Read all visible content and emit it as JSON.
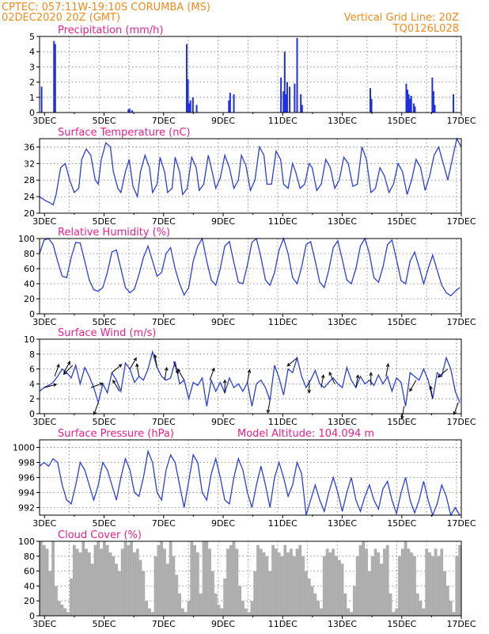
{
  "header": {
    "line1": "CPTEC:   057:11W-19:10S   CORUMBA (MS)",
    "line2_left": "02DEC2020 20Z (GMT)",
    "line2_right": "Vertical Grid Line: 20Z",
    "line3_right": "TQ0126L028"
  },
  "colors": {
    "header": "#f08a1c",
    "panel_title": "#e8218c",
    "series_line": "#2b3fd6",
    "precip_bar": "#2030e0",
    "wind_arrow": "#000000",
    "cloud_fill": "#aaaaaa"
  },
  "x_axis": {
    "start_day": 2,
    "start_hour": 20,
    "end_day": 17,
    "end_hour": 0,
    "tick_labels": [
      {
        "day": 3,
        "label": "3DEC"
      },
      {
        "day": 5,
        "label": "5DEC"
      },
      {
        "day": 7,
        "label": "7DEC"
      },
      {
        "day": 9,
        "label": "9DEC"
      },
      {
        "day": 11,
        "label": "11DEC"
      },
      {
        "day": 13,
        "label": "13DEC"
      },
      {
        "day": 15,
        "label": "15DEC"
      },
      {
        "day": 17,
        "label": "17DEC"
      }
    ]
  },
  "chart_data": [
    {
      "type": "bar",
      "title": "Precipitation (mm/h)",
      "ylim": [
        0,
        5
      ],
      "yticks": [
        0,
        1,
        2,
        3,
        4,
        5
      ],
      "grid": true,
      "x_unit": "days since 02DEC2020 20Z",
      "x": [
        0.05,
        0.55,
        0.6,
        3.55,
        3.6,
        3.7,
        5.9,
        5.95,
        6.0,
        6.05,
        6.15,
        6.3,
        7.6,
        7.65,
        7.8,
        9.7,
        9.8,
        9.85,
        9.9,
        9.95,
        10.05,
        10.25,
        10.35,
        10.5,
        10.55,
        13.3,
        13.35,
        14.75,
        14.8,
        14.85,
        14.9,
        14.95,
        15.05,
        15.1,
        15.8,
        15.85,
        15.9,
        16.65
      ],
      "values": [
        1.7,
        4.7,
        4.5,
        0.2,
        0.25,
        0.15,
        4.5,
        2.2,
        0.6,
        0.8,
        1.0,
        0.5,
        0.8,
        1.3,
        1.2,
        2.3,
        1.4,
        4.0,
        1.2,
        2.0,
        1.7,
        1.9,
        4.9,
        1.2,
        0.5,
        1.6,
        0.9,
        1.9,
        1.5,
        1.2,
        0.9,
        1.1,
        0.6,
        0.4,
        2.3,
        1.4,
        0.5,
        1.2
      ]
    },
    {
      "type": "line",
      "title": "Surface Temperature (nC)",
      "ylim": [
        20,
        38
      ],
      "yticks": [
        20,
        24,
        28,
        32,
        36
      ],
      "grid": true,
      "x_unit": "days since 02DEC2020 20Z",
      "x": [
        0.0,
        0.4,
        0.7,
        0.9,
        1.1,
        1.4,
        1.7,
        2.0,
        2.3,
        2.6,
        2.8,
        3.1,
        3.4,
        3.7,
        3.9,
        4.1,
        4.4,
        4.7,
        4.9,
        5.2,
        5.4,
        5.7,
        5.95,
        6.2,
        6.5,
        6.7,
        7.0,
        7.3,
        7.5,
        7.8,
        8.0,
        8.3,
        8.5,
        8.8,
        9.0,
        9.3,
        9.5,
        9.8,
        10.1,
        10.4,
        10.6,
        10.9,
        11.2,
        11.4,
        11.7,
        12.0,
        12.3,
        12.6,
        12.9,
        13.2,
        13.4,
        13.7,
        14.0,
        14.3,
        14.6,
        14.9,
        15.1,
        15.4,
        15.7,
        16.0,
        16.2,
        16.5,
        16.8,
        17.0,
        17.3,
        17.6,
        17.9,
        18.1,
        18.4,
        18.7,
        19.0,
        19.3,
        19.6,
        19.9,
        20.2,
        20.5,
        20.8,
        21.1,
        21.4,
        21.7,
        22.0,
        22.3,
        22.6,
        22.9,
        23.2,
        23.5,
        23.8,
        24.1,
        24.4,
        24.7,
        25.0,
        25.3,
        25.6,
        25.9,
        26.2,
        26.5,
        26.8,
        27.1,
        27.4,
        27.7,
        28.0
      ],
      "values": [
        24,
        23,
        22.5,
        22,
        24.5,
        31,
        32,
        28,
        25,
        26,
        33,
        35.5,
        34,
        28,
        27,
        33,
        37,
        36,
        30,
        26,
        25,
        30,
        33,
        26.5,
        24,
        30,
        34,
        31,
        25,
        27,
        33.5,
        30,
        25,
        26,
        33.5,
        30,
        24.5,
        26,
        33.5,
        31,
        25.5,
        27,
        34,
        31,
        26,
        28.5,
        34,
        31,
        26,
        28,
        34,
        31.5,
        25.5,
        28,
        36,
        34,
        27,
        27,
        35,
        33,
        27,
        26,
        32,
        30,
        26,
        27,
        32,
        31,
        25.5,
        27,
        33,
        31,
        26,
        28,
        33.5,
        32,
        26.5,
        27,
        36,
        33,
        25,
        26,
        31,
        29,
        25,
        27,
        32,
        30,
        24.5,
        28,
        33,
        31,
        25.5,
        29,
        34,
        36,
        32,
        28,
        33,
        38,
        36
      ]
    },
    {
      "type": "line",
      "title": "Relative Humidity (%)",
      "ylim": [
        0,
        100
      ],
      "yticks": [
        0,
        20,
        40,
        60,
        80,
        100
      ],
      "grid": true,
      "x_unit": "days since 02DEC2020 20Z",
      "x": [
        0.0,
        0.3,
        0.6,
        0.9,
        1.2,
        1.5,
        1.8,
        2.1,
        2.4,
        2.7,
        3.0,
        3.3,
        3.6,
        3.9,
        4.2,
        4.5,
        4.8,
        5.1,
        5.4,
        5.7,
        6.0,
        6.3,
        6.6,
        6.9,
        7.2,
        7.5,
        7.8,
        8.1,
        8.4,
        8.7,
        9.0,
        9.3,
        9.6,
        9.9,
        10.2,
        10.5,
        10.8,
        11.1,
        11.4,
        11.7,
        12.0,
        12.3,
        12.6,
        12.9,
        13.2,
        13.5,
        13.8,
        14.1,
        14.4,
        14.7,
        15.0,
        15.3,
        15.6,
        15.9,
        16.2,
        16.5,
        16.8,
        17.1,
        17.4,
        17.7,
        18.0,
        18.3,
        18.6,
        18.9,
        19.2,
        19.5,
        19.8,
        20.1,
        20.4,
        20.7,
        21.0,
        21.3,
        21.6,
        21.9,
        22.2,
        22.5,
        22.8,
        23.1,
        23.4,
        23.7,
        24.0,
        24.3,
        24.6,
        24.9,
        25.2,
        25.5,
        25.8,
        26.1,
        26.4,
        26.7,
        27.0,
        27.3,
        27.6,
        27.9
      ],
      "values": [
        80,
        98,
        100,
        92,
        70,
        50,
        48,
        75,
        95,
        94,
        70,
        45,
        32,
        30,
        35,
        55,
        82,
        85,
        60,
        35,
        28,
        33,
        52,
        75,
        90,
        70,
        50,
        55,
        80,
        88,
        60,
        40,
        25,
        35,
        70,
        90,
        100,
        70,
        45,
        38,
        60,
        90,
        96,
        68,
        42,
        40,
        65,
        95,
        100,
        75,
        45,
        38,
        55,
        85,
        100,
        80,
        48,
        40,
        62,
        92,
        96,
        70,
        42,
        35,
        58,
        88,
        97,
        72,
        45,
        40,
        60,
        90,
        100,
        80,
        48,
        42,
        62,
        92,
        98,
        72,
        44,
        40,
        70,
        82,
        62,
        40,
        60,
        78,
        58,
        38,
        28,
        24,
        30,
        35
      ]
    },
    {
      "type": "line",
      "title": "Surface Wind (m/s)",
      "ylim": [
        0,
        10
      ],
      "yticks": [
        0,
        2,
        4,
        6,
        8,
        10
      ],
      "grid": true,
      "x_unit": "days since 02DEC2020 20Z",
      "x": [
        0.0,
        0.3,
        0.6,
        0.9,
        1.2,
        1.5,
        1.8,
        2.1,
        2.4,
        2.7,
        3.0,
        3.3,
        3.6,
        3.9,
        4.2,
        4.5,
        4.8,
        5.1,
        5.4,
        5.7,
        6.0,
        6.3,
        6.6,
        6.9,
        7.2,
        7.5,
        7.8,
        8.1,
        8.4,
        8.7,
        9.0,
        9.3,
        9.6,
        9.9,
        10.2,
        10.5,
        10.8,
        11.1,
        11.4,
        11.7,
        12.0,
        12.3,
        12.6,
        12.9,
        13.2,
        13.5,
        13.8,
        14.1,
        14.4,
        14.7,
        15.0,
        15.3,
        15.6,
        15.9,
        16.2,
        16.5,
        16.8,
        17.1,
        17.4,
        17.7,
        18.0,
        18.3,
        18.6,
        18.9,
        19.2,
        19.5,
        19.8,
        20.1,
        20.4,
        20.7,
        21.0,
        21.3,
        21.6,
        21.9,
        22.2,
        22.5,
        22.8,
        23.1,
        23.4,
        23.7,
        24.0,
        24.3,
        24.6,
        24.9,
        25.2,
        25.5,
        25.8,
        26.1,
        26.4,
        26.7,
        27.0,
        27.3,
        27.6,
        27.9
      ],
      "values": [
        3.0,
        3.5,
        3.8,
        4.2,
        5.0,
        6.0,
        5.5,
        4.8,
        6.5,
        4.0,
        6.2,
        5.0,
        3.5,
        1.5,
        4.0,
        2.8,
        5.5,
        4.5,
        3.0,
        6.8,
        6.0,
        4.2,
        5.0,
        4.5,
        6.0,
        8.3,
        6.2,
        5.0,
        4.5,
        4.8,
        7.0,
        4.0,
        4.5,
        2.0,
        4.2,
        3.8,
        4.8,
        1.0,
        4.5,
        3.0,
        4.2,
        2.8,
        4.8,
        3.5,
        4.0,
        3.0,
        4.2,
        1.0,
        4.0,
        4.5,
        3.5,
        1.8,
        6.5,
        4.8,
        2.5,
        6.0,
        5.5,
        7.5,
        5.0,
        3.5,
        4.5,
        5.8,
        4.0,
        3.5,
        4.2,
        4.8,
        4.0,
        3.5,
        6.2,
        4.5,
        3.5,
        5.0,
        4.0,
        4.5,
        3.8,
        5.2,
        4.0,
        5.0,
        3.0,
        4.8,
        4.2,
        1.0,
        5.5,
        5.0,
        4.5,
        6.0,
        4.5,
        2.0,
        5.5,
        5.0,
        7.5,
        6.0,
        3.0,
        1.5
      ],
      "arrows": [
        {
          "x": 0.3,
          "dir_deg": 15
        },
        {
          "x": 1.0,
          "dir_deg": 70
        },
        {
          "x": 1.6,
          "dir_deg": 60
        },
        {
          "x": 2.2,
          "dir_deg": 225
        },
        {
          "x": 3.4,
          "dir_deg": 20
        },
        {
          "x": 3.9,
          "dir_deg": 250
        },
        {
          "x": 4.8,
          "dir_deg": 40
        },
        {
          "x": 5.3,
          "dir_deg": 120
        },
        {
          "x": 6.0,
          "dir_deg": 60
        },
        {
          "x": 6.6,
          "dir_deg": 100
        },
        {
          "x": 7.8,
          "dir_deg": 100
        },
        {
          "x": 8.3,
          "dir_deg": 80
        },
        {
          "x": 8.9,
          "dir_deg": 290
        },
        {
          "x": 9.6,
          "dir_deg": 120
        },
        {
          "x": 11.3,
          "dir_deg": 70
        },
        {
          "x": 12.3,
          "dir_deg": 90
        },
        {
          "x": 13.8,
          "dir_deg": 80
        },
        {
          "x": 15.3,
          "dir_deg": 260
        },
        {
          "x": 17.1,
          "dir_deg": 220
        },
        {
          "x": 17.9,
          "dir_deg": 270
        },
        {
          "x": 18.7,
          "dir_deg": 80
        },
        {
          "x": 19.6,
          "dir_deg": 115
        },
        {
          "x": 21.0,
          "dir_deg": 80
        },
        {
          "x": 22.0,
          "dir_deg": 90
        },
        {
          "x": 23.0,
          "dir_deg": 80
        },
        {
          "x": 24.2,
          "dir_deg": 260
        },
        {
          "x": 25.0,
          "dir_deg": 240
        },
        {
          "x": 26.1,
          "dir_deg": 100
        },
        {
          "x": 27.1,
          "dir_deg": 220
        },
        {
          "x": 27.8,
          "dir_deg": 250
        }
      ]
    },
    {
      "type": "line",
      "title": "Surface Pressure (hPa)",
      "subtitle": "Model Altitude: 104.094  m",
      "ylim": [
        991,
        1001
      ],
      "yticks": [
        992,
        994,
        996,
        998,
        1000
      ],
      "grid": true,
      "x_unit": "days since 02DEC2020 20Z",
      "x": [
        0.0,
        0.3,
        0.6,
        0.9,
        1.2,
        1.5,
        1.8,
        2.1,
        2.4,
        2.7,
        3.0,
        3.3,
        3.6,
        3.9,
        4.2,
        4.5,
        4.8,
        5.1,
        5.4,
        5.7,
        6.0,
        6.3,
        6.6,
        6.9,
        7.2,
        7.5,
        7.8,
        8.1,
        8.4,
        8.7,
        9.0,
        9.3,
        9.6,
        9.9,
        10.2,
        10.5,
        10.8,
        11.1,
        11.4,
        11.7,
        12.0,
        12.3,
        12.6,
        12.9,
        13.2,
        13.5,
        13.8,
        14.1,
        14.4,
        14.7,
        15.0,
        15.3,
        15.6,
        15.9,
        16.2,
        16.5,
        16.8,
        17.1,
        17.4,
        17.7,
        18.0,
        18.3,
        18.6,
        18.9,
        19.2,
        19.5,
        19.8,
        20.1,
        20.4,
        20.7,
        21.0,
        21.3,
        21.6,
        21.9,
        22.2,
        22.5,
        22.8,
        23.1,
        23.4,
        23.7,
        24.0,
        24.3,
        24.6,
        24.9,
        25.2,
        25.5,
        25.8,
        26.1,
        26.4,
        26.7,
        27.0,
        27.3,
        27.6,
        27.9
      ],
      "values": [
        997.5,
        998,
        997.5,
        998.5,
        998,
        995,
        993,
        992.5,
        995,
        998,
        997,
        995,
        993,
        995,
        998,
        997,
        995,
        993,
        996,
        998.5,
        997,
        994,
        993.5,
        996,
        999.5,
        998,
        994,
        993,
        997,
        999,
        998,
        995,
        992,
        995.5,
        999,
        998,
        994,
        993,
        996.5,
        998.5,
        996,
        993,
        992.5,
        996,
        998.5,
        997,
        994,
        992,
        995,
        997.5,
        995,
        992,
        996,
        998,
        996,
        993.5,
        995,
        998,
        996.5,
        991,
        993,
        995,
        993,
        991.5,
        994,
        996,
        994,
        991.5,
        994,
        996,
        993,
        991.5,
        993.5,
        995,
        993,
        991.8,
        994.5,
        995.5,
        993,
        991.2,
        994,
        996,
        993,
        991.3,
        993,
        995.5,
        993,
        991,
        992.5,
        995,
        993.5,
        991,
        992,
        991
      ]
    },
    {
      "type": "area",
      "title": "Cloud Cover (%)",
      "ylim": [
        0,
        100
      ],
      "yticks": [
        0,
        20,
        40,
        60,
        80,
        100
      ],
      "grid": true,
      "x_unit": "days since 02DEC2020 20Z",
      "x": [
        0.0,
        0.2,
        0.4,
        0.6,
        0.8,
        1.0,
        1.2,
        1.4,
        1.6,
        1.8,
        2.0,
        2.2,
        2.4,
        2.6,
        2.8,
        3.0,
        3.2,
        3.4,
        3.6,
        3.8,
        4.0,
        4.2,
        4.4,
        4.6,
        4.8,
        5.0,
        5.2,
        5.4,
        5.6,
        5.8,
        6.0,
        6.2,
        6.4,
        6.6,
        6.8,
        7.0,
        7.2,
        7.4,
        7.6,
        7.8,
        8.0,
        8.2,
        8.4,
        8.6,
        8.8,
        9.0,
        9.2,
        9.4,
        9.6,
        9.8,
        10.0,
        10.2,
        10.4,
        10.6,
        10.8,
        11.0,
        11.2,
        11.4,
        11.6,
        11.8,
        12.0,
        12.2,
        12.4,
        12.6,
        12.8,
        13.0,
        13.2,
        13.4,
        13.6,
        13.8,
        14.0,
        14.2,
        14.4,
        14.6,
        14.8,
        15.0,
        15.2,
        15.4,
        15.6,
        15.8,
        16.0,
        16.2,
        16.4,
        16.6,
        16.8,
        17.0,
        17.2,
        17.4,
        17.6,
        17.8,
        18.0,
        18.2,
        18.4,
        18.6,
        18.8,
        19.0,
        19.2,
        19.4,
        19.6,
        19.8,
        20.0,
        20.2,
        20.4,
        20.6,
        20.8,
        21.0,
        21.2,
        21.4,
        21.6,
        21.8,
        22.0,
        22.2,
        22.4,
        22.6,
        22.8,
        23.0,
        23.2,
        23.4,
        23.6,
        23.8,
        24.0,
        24.2,
        24.4,
        24.6,
        24.8,
        25.0,
        25.2,
        25.4,
        25.6,
        25.8,
        26.0,
        26.2,
        26.4,
        26.6,
        26.8,
        27.0,
        27.2,
        27.4,
        27.6,
        27.8,
        28.0
      ],
      "values": [
        100,
        95,
        90,
        60,
        100,
        40,
        20,
        15,
        10,
        5,
        50,
        95,
        90,
        85,
        100,
        90,
        85,
        70,
        95,
        100,
        90,
        100,
        95,
        85,
        80,
        70,
        60,
        90,
        100,
        95,
        100,
        85,
        90,
        75,
        60,
        20,
        10,
        5,
        80,
        95,
        100,
        90,
        70,
        100,
        80,
        55,
        30,
        10,
        5,
        20,
        100,
        95,
        85,
        30,
        100,
        100,
        90,
        60,
        30,
        15,
        10,
        50,
        90,
        95,
        100,
        90,
        40,
        20,
        10,
        5,
        20,
        60,
        95,
        90,
        85,
        80,
        60,
        95,
        90,
        85,
        80,
        95,
        85,
        90,
        80,
        90,
        95,
        80,
        60,
        50,
        40,
        30,
        20,
        10,
        80,
        90,
        85,
        90,
        80,
        75,
        70,
        30,
        10,
        5,
        40,
        80,
        95,
        100,
        90,
        60,
        80,
        90,
        85,
        70,
        90,
        95,
        30,
        5,
        10,
        80,
        90,
        100,
        90,
        85,
        80,
        30,
        20,
        10,
        90,
        85,
        80,
        90,
        80,
        90,
        60,
        40,
        20,
        5,
        80,
        95,
        100
      ]
    }
  ]
}
